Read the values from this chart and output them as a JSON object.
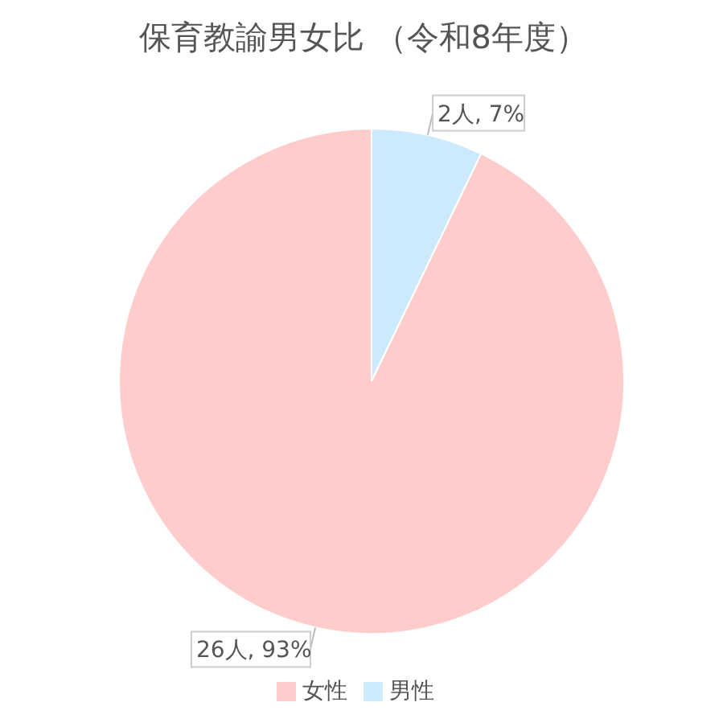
{
  "chart_data": {
    "type": "pie",
    "title": "保育教諭男女比 （令和8年度）",
    "categories": [
      "男性",
      "女性"
    ],
    "values": [
      2,
      26
    ],
    "colors": [
      "#cceafb",
      "#ffcccc"
    ],
    "value_labels": [
      "2人, 7%",
      "26人, 93%"
    ],
    "legend": "bottom"
  }
}
